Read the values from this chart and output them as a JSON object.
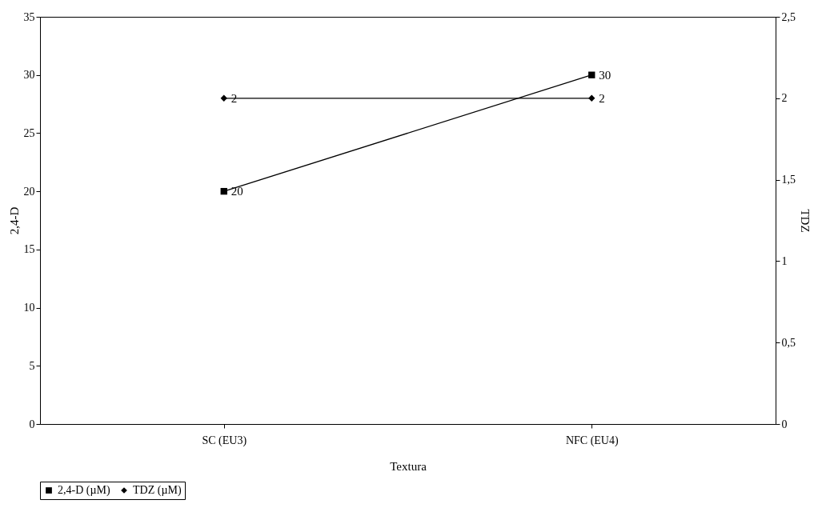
{
  "chart_data": {
    "type": "line",
    "xlabel": "Textura",
    "ylabel": "2,4-D",
    "y2label": "TDZ",
    "categories": [
      "SC (EU3)",
      "NFC (EU4)"
    ],
    "series": [
      {
        "name": "2,4-D (µM)",
        "color": "#000000",
        "marker": "square",
        "values": [
          20,
          30
        ]
      },
      {
        "name": "TDZ (µM)",
        "color": "#000000",
        "marker": "diamond",
        "axis": "y2",
        "values": [
          2,
          2
        ]
      }
    ],
    "ylim": [
      0,
      35
    ],
    "yticks": [
      0,
      5,
      10,
      15,
      20,
      25,
      30,
      35
    ],
    "y2lim": [
      0,
      2.5
    ],
    "y2ticks": [
      0,
      {
        "value": 0.5,
        "label": "0,5"
      },
      1,
      {
        "value": 1.5,
        "label": "1,5"
      },
      2,
      {
        "value": 2.5,
        "label": "2,5"
      }
    ],
    "data_labels": true,
    "legend": "bottom"
  }
}
